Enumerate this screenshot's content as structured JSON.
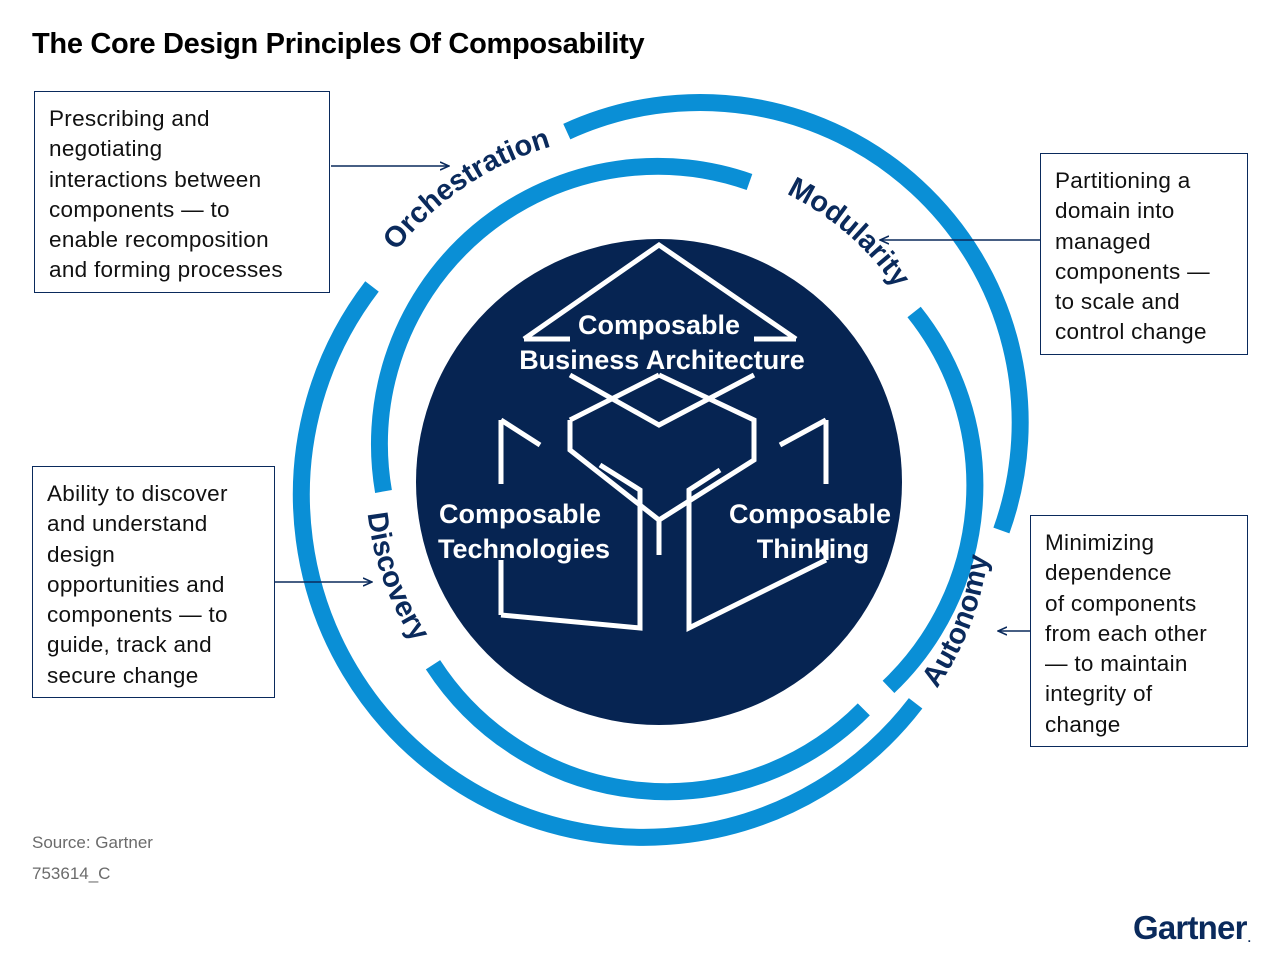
{
  "title": "The Core Design Principles Of Composability",
  "principles": {
    "orchestration": {
      "label": "Orchestration",
      "description": [
        "Prescribing and",
        "negotiating",
        "interactions between",
        "components — to",
        "enable recomposition",
        "and forming processes"
      ]
    },
    "modularity": {
      "label": "Modularity",
      "description": [
        "Partitioning a",
        "domain into",
        "managed",
        "components —",
        "to scale and",
        "control change"
      ]
    },
    "discovery": {
      "label": "Discovery",
      "description": [
        "Ability to discover",
        "and understand",
        "design",
        "opportunities and",
        "components — to",
        "guide, track and",
        "secure change"
      ]
    },
    "autonomy": {
      "label": "Autonomy",
      "description": [
        "Minimizing",
        "dependence",
        "of components",
        "from each other",
        "— to maintain",
        "integrity of",
        "change"
      ]
    }
  },
  "core": {
    "business_architecture": [
      "Composable",
      "Business Architecture"
    ],
    "technologies": [
      "Composable",
      "Technologies"
    ],
    "thinking": [
      "Composable",
      "Thinking"
    ]
  },
  "footer": {
    "source": "Source: Gartner",
    "figure_id": "753614_C",
    "logo": "Gartner"
  },
  "colors": {
    "ring": "#0a8fd6",
    "core": "#062452",
    "text_dark": "#0a2a5c"
  }
}
